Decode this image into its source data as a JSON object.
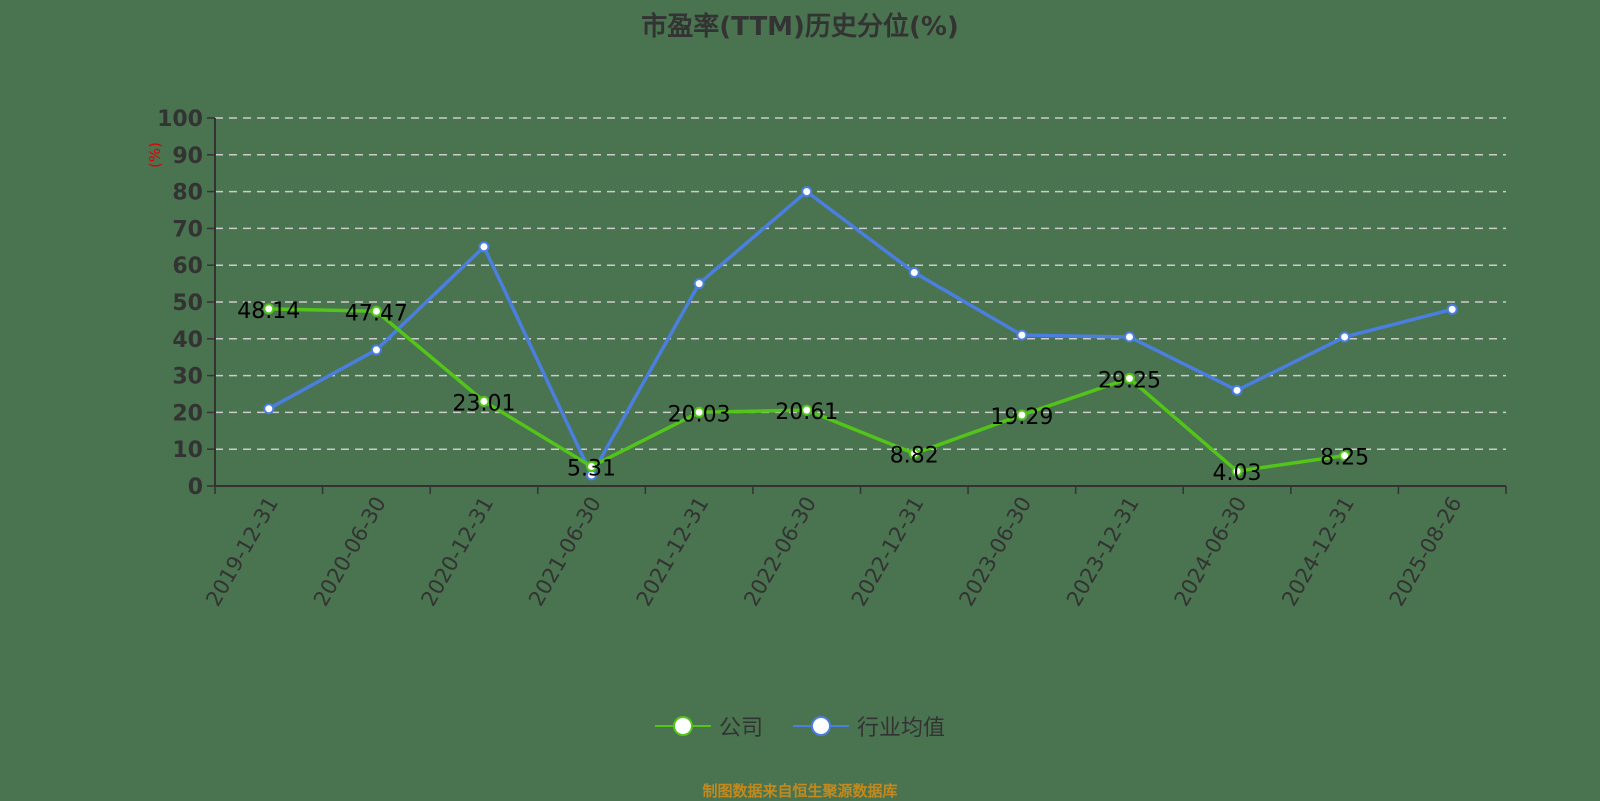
{
  "title": "市盈率(TTM)历史分位(%)",
  "footer": "制图数据来自恒生聚源数据库",
  "colors": {
    "company": "#52c41a",
    "industry": "#4a7fe0",
    "axis": "#333333",
    "grid": "#cccccc",
    "unit": "#e00000",
    "footer": "#c28a1e"
  },
  "chart_data": {
    "type": "line",
    "title": "市盈率(TTM)历史分位(%)",
    "ylabel": "(%)",
    "xlabel": "",
    "ylim": [
      0,
      100
    ],
    "yticks": [
      0,
      10,
      20,
      30,
      40,
      50,
      60,
      70,
      80,
      90,
      100
    ],
    "grid": true,
    "legend_position": "bottom",
    "categories": [
      "2019-12-31",
      "2020-06-30",
      "2020-12-31",
      "2021-06-30",
      "2021-12-31",
      "2022-06-30",
      "2022-12-31",
      "2023-06-30",
      "2023-12-31",
      "2024-06-30",
      "2024-12-31",
      "2025-08-26"
    ],
    "series": [
      {
        "name": "公司",
        "values": [
          48.14,
          47.47,
          23.01,
          5.31,
          20.03,
          20.61,
          8.82,
          19.29,
          29.25,
          4.03,
          8.25,
          null
        ],
        "labels": true
      },
      {
        "name": "行业均值",
        "values": [
          21,
          37,
          65,
          3,
          55,
          80,
          58,
          41,
          40.5,
          26,
          40.5,
          48
        ],
        "labels": false
      }
    ]
  },
  "legend": [
    {
      "label": "公司"
    },
    {
      "label": "行业均值"
    }
  ]
}
